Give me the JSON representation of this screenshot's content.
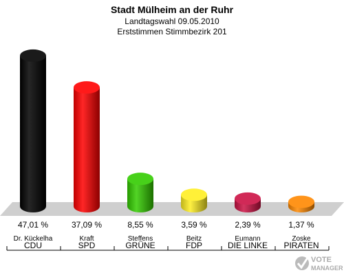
{
  "header": {
    "title": "Stadt Mülheim an der Ruhr",
    "subtitle": "Landtagswahl 09.05.2010",
    "subtitle2": "Erststimmen Stimmbezirk 201"
  },
  "chart_data": {
    "type": "bar",
    "categories": [
      "CDU",
      "SPD",
      "GRÜNE",
      "FDP",
      "DIE LINKE",
      "PIRATEN"
    ],
    "candidates": [
      "Dr. Kückelha",
      "Kraft",
      "Steffens",
      "Beitz",
      "Eumann",
      "Zoske"
    ],
    "values": [
      47.01,
      37.09,
      8.55,
      3.59,
      2.39,
      1.37
    ],
    "value_labels": [
      "47,01 %",
      "37,09 %",
      "8,55 %",
      "3,59 %",
      "2,39 %",
      "1,37 %"
    ],
    "colors": [
      "#000000",
      "#ff0000",
      "#33cc00",
      "#ffee22",
      "#cc1144",
      "#ff8800"
    ],
    "ylim": [
      0,
      50
    ],
    "grid": false,
    "legend": "none"
  },
  "logo": {
    "line1": "VOTE",
    "line2": "MANAGER"
  }
}
